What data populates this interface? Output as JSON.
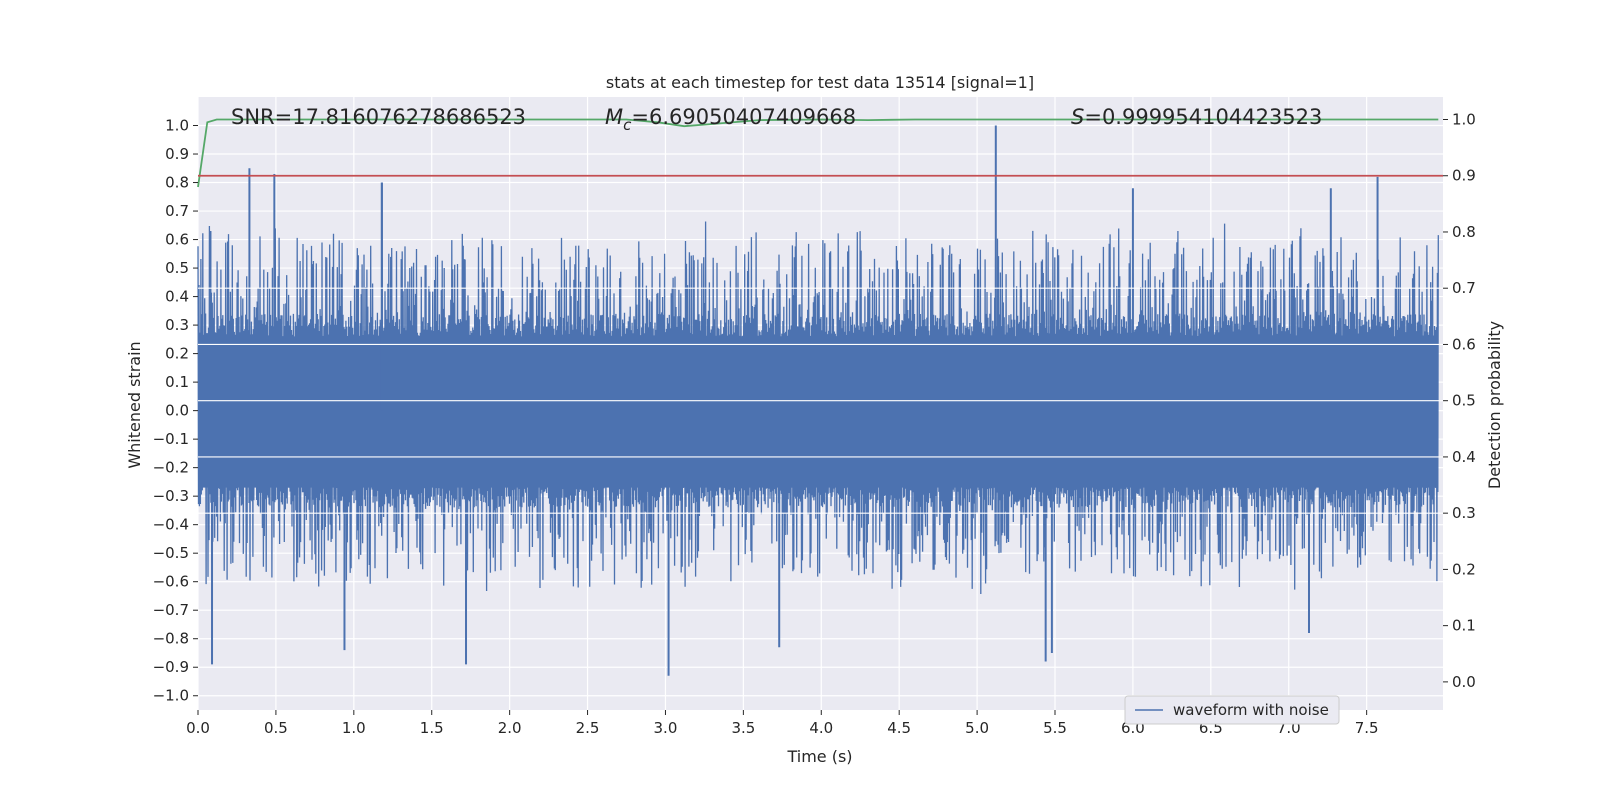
{
  "chart_data": {
    "type": "line",
    "title": "stats at each timestep for test data 13514 [signal=1]",
    "xlabel": "Time (s)",
    "ylabel_left": "Whitened strain",
    "ylabel_right": "Detection probability",
    "xlim": [
      0.0,
      7.99
    ],
    "ylim_left": [
      -1.05,
      1.1
    ],
    "ylim_right": [
      -0.05,
      1.04
    ],
    "x_ticks": [
      "0.0",
      "0.5",
      "1.0",
      "1.5",
      "2.0",
      "2.5",
      "3.0",
      "3.5",
      "4.0",
      "4.5",
      "5.0",
      "5.5",
      "6.0",
      "6.5",
      "7.0",
      "7.5"
    ],
    "y_left_ticks": [
      "1.0",
      "0.9",
      "0.8",
      "0.7",
      "0.6",
      "0.5",
      "0.4",
      "0.3",
      "0.2",
      "0.1",
      "0.0",
      "−0.1",
      "−0.2",
      "−0.3",
      "−0.4",
      "−0.5",
      "−0.6",
      "−0.7",
      "−0.8",
      "−0.9",
      "−1.0"
    ],
    "y_right_ticks": [
      "1.0",
      "0.9",
      "0.8",
      "0.7",
      "0.6",
      "0.5",
      "0.4",
      "0.3",
      "0.2",
      "0.1",
      "0.0"
    ],
    "annotations": {
      "snr": "SNR=17.816076278686523",
      "mc_symbol": "M",
      "mc_sub": "c",
      "mc_value": "=6.69050407409668",
      "s_symbol": "S",
      "s_value": "=0.999954104423523"
    },
    "grid": true,
    "legend_position": "lower-right",
    "series": [
      {
        "name": "waveform with noise",
        "axis": "left",
        "color": "#4c72b0",
        "kind": "noise-waveform",
        "core_band": [
          -0.27,
          0.26
        ],
        "typical_peak_range": [
          -0.6,
          0.6
        ],
        "spikes": [
          {
            "x": 0.08,
            "y": 0.63
          },
          {
            "x": 0.33,
            "y": 0.85
          },
          {
            "x": 0.49,
            "y": 0.83
          },
          {
            "x": 1.18,
            "y": 0.8
          },
          {
            "x": 1.18,
            "y": 0.8
          },
          {
            "x": 5.12,
            "y": 1.0
          },
          {
            "x": 7.57,
            "y": 0.82
          },
          {
            "x": 7.27,
            "y": 0.78
          },
          {
            "x": 6.0,
            "y": 0.78
          },
          {
            "x": 0.09,
            "y": -0.89
          },
          {
            "x": 0.94,
            "y": -0.84
          },
          {
            "x": 1.72,
            "y": -0.89
          },
          {
            "x": 3.02,
            "y": -0.93
          },
          {
            "x": 5.44,
            "y": -0.88
          },
          {
            "x": 5.48,
            "y": -0.85
          },
          {
            "x": 7.13,
            "y": -0.78
          },
          {
            "x": 3.73,
            "y": -0.83
          }
        ]
      },
      {
        "name": "",
        "axis": "right",
        "color": "#55a868",
        "x": [
          0.0,
          0.06,
          0.12,
          0.5,
          1.0,
          2.0,
          2.75,
          2.95,
          3.12,
          3.3,
          3.6,
          4.0,
          4.3,
          4.6,
          5.0,
          5.5,
          6.0,
          7.0,
          7.96
        ],
        "y": [
          0.88,
          0.995,
          1.0,
          1.0,
          1.0,
          1.0,
          1.0,
          0.995,
          0.988,
          0.992,
          0.999,
          1.0,
          0.999,
          1.0,
          1.0,
          1.0,
          1.0,
          1.0,
          1.0
        ]
      },
      {
        "name": "",
        "axis": "right",
        "color": "#c44e52",
        "kind": "threshold",
        "y": 0.9
      }
    ]
  }
}
